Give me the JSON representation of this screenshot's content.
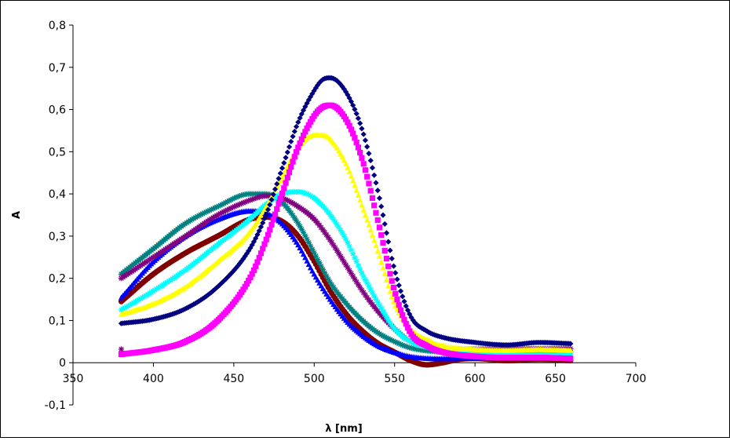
{
  "chart_data": {
    "type": "scatter",
    "title": "",
    "xlabel": "λ [nm]",
    "ylabel": "A",
    "xlim": [
      350,
      700
    ],
    "ylim": [
      -0.1,
      0.8
    ],
    "xticks": [
      350,
      400,
      450,
      500,
      550,
      600,
      650,
      700
    ],
    "xtick_labels": [
      "350",
      "400",
      "450",
      "500",
      "550",
      "600",
      "650",
      "700"
    ],
    "yticks": [
      -0.1,
      0,
      0.1,
      0.2,
      0.3,
      0.4,
      0.5,
      0.6,
      0.7,
      0.8
    ],
    "ytick_labels": [
      "-0,1",
      "0",
      "0,1",
      "0,2",
      "0,3",
      "0,4",
      "0,5",
      "0,6",
      "0,7",
      "0,8"
    ],
    "grid": false,
    "legend": "none",
    "series": [
      {
        "color": "#000080",
        "marker": "diamond",
        "x": [
          380,
          400,
          420,
          440,
          460,
          470,
          480,
          490,
          500,
          505,
          510,
          520,
          530,
          540,
          550,
          560,
          570,
          580,
          600,
          620,
          640,
          660
        ],
        "y": [
          0.093,
          0.103,
          0.128,
          0.18,
          0.27,
          0.35,
          0.46,
          0.57,
          0.645,
          0.67,
          0.675,
          0.64,
          0.55,
          0.4,
          0.22,
          0.11,
          0.075,
          0.06,
          0.048,
          0.042,
          0.048,
          0.045
        ]
      },
      {
        "color": "#ff00ff",
        "marker": "square",
        "x": [
          380,
          400,
          420,
          440,
          460,
          470,
          480,
          490,
          500,
          505,
          510,
          520,
          530,
          540,
          550,
          560,
          570,
          580,
          600,
          620,
          640,
          660
        ],
        "y": [
          0.02,
          0.03,
          0.05,
          0.1,
          0.2,
          0.29,
          0.4,
          0.51,
          0.585,
          0.605,
          0.61,
          0.575,
          0.48,
          0.33,
          0.17,
          0.07,
          0.04,
          0.025,
          0.015,
          0.012,
          0.012,
          0.01
        ]
      },
      {
        "color": "#ffff00",
        "marker": "triangle",
        "x": [
          380,
          400,
          420,
          440,
          460,
          470,
          480,
          490,
          500,
          505,
          510,
          520,
          530,
          540,
          550,
          560,
          570,
          580,
          600,
          620,
          640,
          660
        ],
        "y": [
          0.115,
          0.14,
          0.18,
          0.24,
          0.31,
          0.37,
          0.44,
          0.51,
          0.54,
          0.54,
          0.53,
          0.47,
          0.37,
          0.26,
          0.14,
          0.08,
          0.055,
          0.04,
          0.032,
          0.03,
          0.032,
          0.03
        ]
      },
      {
        "color": "#00ffff",
        "marker": "star",
        "x": [
          380,
          400,
          420,
          440,
          460,
          470,
          480,
          490,
          500,
          510,
          520,
          530,
          540,
          550,
          560,
          580,
          600,
          620,
          640,
          660
        ],
        "y": [
          0.125,
          0.17,
          0.22,
          0.28,
          0.34,
          0.375,
          0.4,
          0.405,
          0.39,
          0.35,
          0.29,
          0.21,
          0.14,
          0.08,
          0.05,
          0.03,
          0.022,
          0.02,
          0.02,
          0.02
        ]
      },
      {
        "color": "#800080",
        "marker": "star",
        "x": [
          380,
          400,
          420,
          440,
          460,
          470,
          480,
          490,
          500,
          510,
          520,
          530,
          540,
          550,
          560,
          580,
          600,
          620,
          640,
          660
        ],
        "y": [
          0.2,
          0.25,
          0.3,
          0.35,
          0.385,
          0.395,
          0.39,
          0.37,
          0.34,
          0.29,
          0.23,
          0.17,
          0.12,
          0.08,
          0.05,
          0.035,
          0.032,
          0.032,
          0.033,
          0.033
        ]
      },
      {
        "color": "#008080",
        "marker": "star",
        "x": [
          380,
          400,
          420,
          440,
          460,
          470,
          480,
          490,
          500,
          510,
          520,
          530,
          540,
          550,
          560,
          580,
          600,
          620,
          640,
          660
        ],
        "y": [
          0.21,
          0.27,
          0.33,
          0.37,
          0.4,
          0.4,
          0.38,
          0.33,
          0.26,
          0.19,
          0.14,
          0.1,
          0.07,
          0.05,
          0.035,
          0.025,
          0.022,
          0.022,
          0.025,
          0.025
        ]
      },
      {
        "color": "#0000ff",
        "marker": "triangle",
        "x": [
          380,
          400,
          420,
          440,
          460,
          470,
          480,
          490,
          500,
          510,
          520,
          530,
          540,
          550,
          560,
          580,
          600,
          620,
          640,
          660
        ],
        "y": [
          0.155,
          0.24,
          0.3,
          0.34,
          0.36,
          0.355,
          0.33,
          0.28,
          0.21,
          0.15,
          0.1,
          0.065,
          0.04,
          0.025,
          0.015,
          0.01,
          0.012,
          0.015,
          0.018,
          0.015
        ]
      },
      {
        "color": "#800000",
        "marker": "circle",
        "x": [
          380,
          400,
          420,
          440,
          460,
          470,
          480,
          490,
          500,
          510,
          520,
          530,
          540,
          550,
          560,
          570,
          580,
          590,
          600,
          620,
          640,
          660
        ],
        "y": [
          0.145,
          0.21,
          0.26,
          0.3,
          0.34,
          0.345,
          0.335,
          0.3,
          0.24,
          0.17,
          0.115,
          0.075,
          0.045,
          0.025,
          0.005,
          -0.005,
          0.0,
          0.008,
          0.01,
          0.005,
          0.008,
          0.005
        ]
      }
    ],
    "stray_points": [
      {
        "x": 380,
        "y": 0.032,
        "color": "#800080",
        "marker": "star"
      }
    ]
  }
}
